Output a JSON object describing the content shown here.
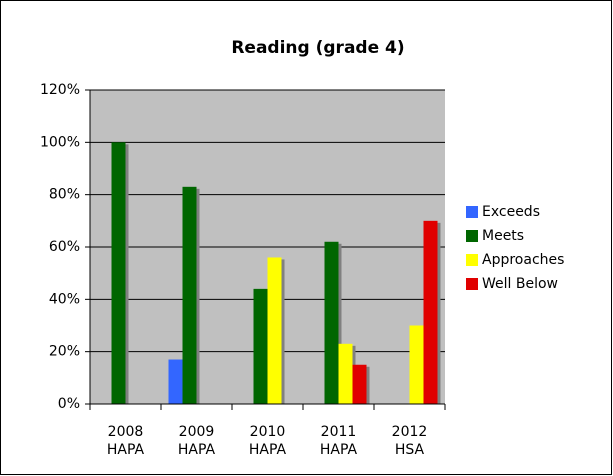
{
  "chart_data": {
    "type": "bar",
    "title": "Reading (grade 4)",
    "categories": [
      [
        "2008",
        "HAPA"
      ],
      [
        "2009",
        "HAPA"
      ],
      [
        "2010",
        "HAPA"
      ],
      [
        "2011",
        "HAPA"
      ],
      [
        "2012",
        "HSA"
      ]
    ],
    "series": [
      {
        "name": "Exceeds",
        "color": "#3366ff",
        "values": [
          0,
          17,
          0,
          0,
          0
        ]
      },
      {
        "name": "Meets",
        "color": "#006600",
        "values": [
          100,
          83,
          44,
          62,
          0
        ]
      },
      {
        "name": "Approaches",
        "color": "#ffff00",
        "values": [
          0,
          0,
          56,
          23,
          30
        ]
      },
      {
        "name": "Well Below",
        "color": "#e00000",
        "values": [
          0,
          0,
          0,
          15,
          70
        ]
      }
    ],
    "ylim": [
      0,
      120
    ],
    "yticks": [
      {
        "value": 0,
        "label": "0%"
      },
      {
        "value": 20,
        "label": "20%"
      },
      {
        "value": 40,
        "label": "40%"
      },
      {
        "value": 60,
        "label": "60%"
      },
      {
        "value": 80,
        "label": "80%"
      },
      {
        "value": 100,
        "label": "100%"
      },
      {
        "value": 120,
        "label": "120%"
      }
    ],
    "grid": true,
    "legend": "right"
  }
}
